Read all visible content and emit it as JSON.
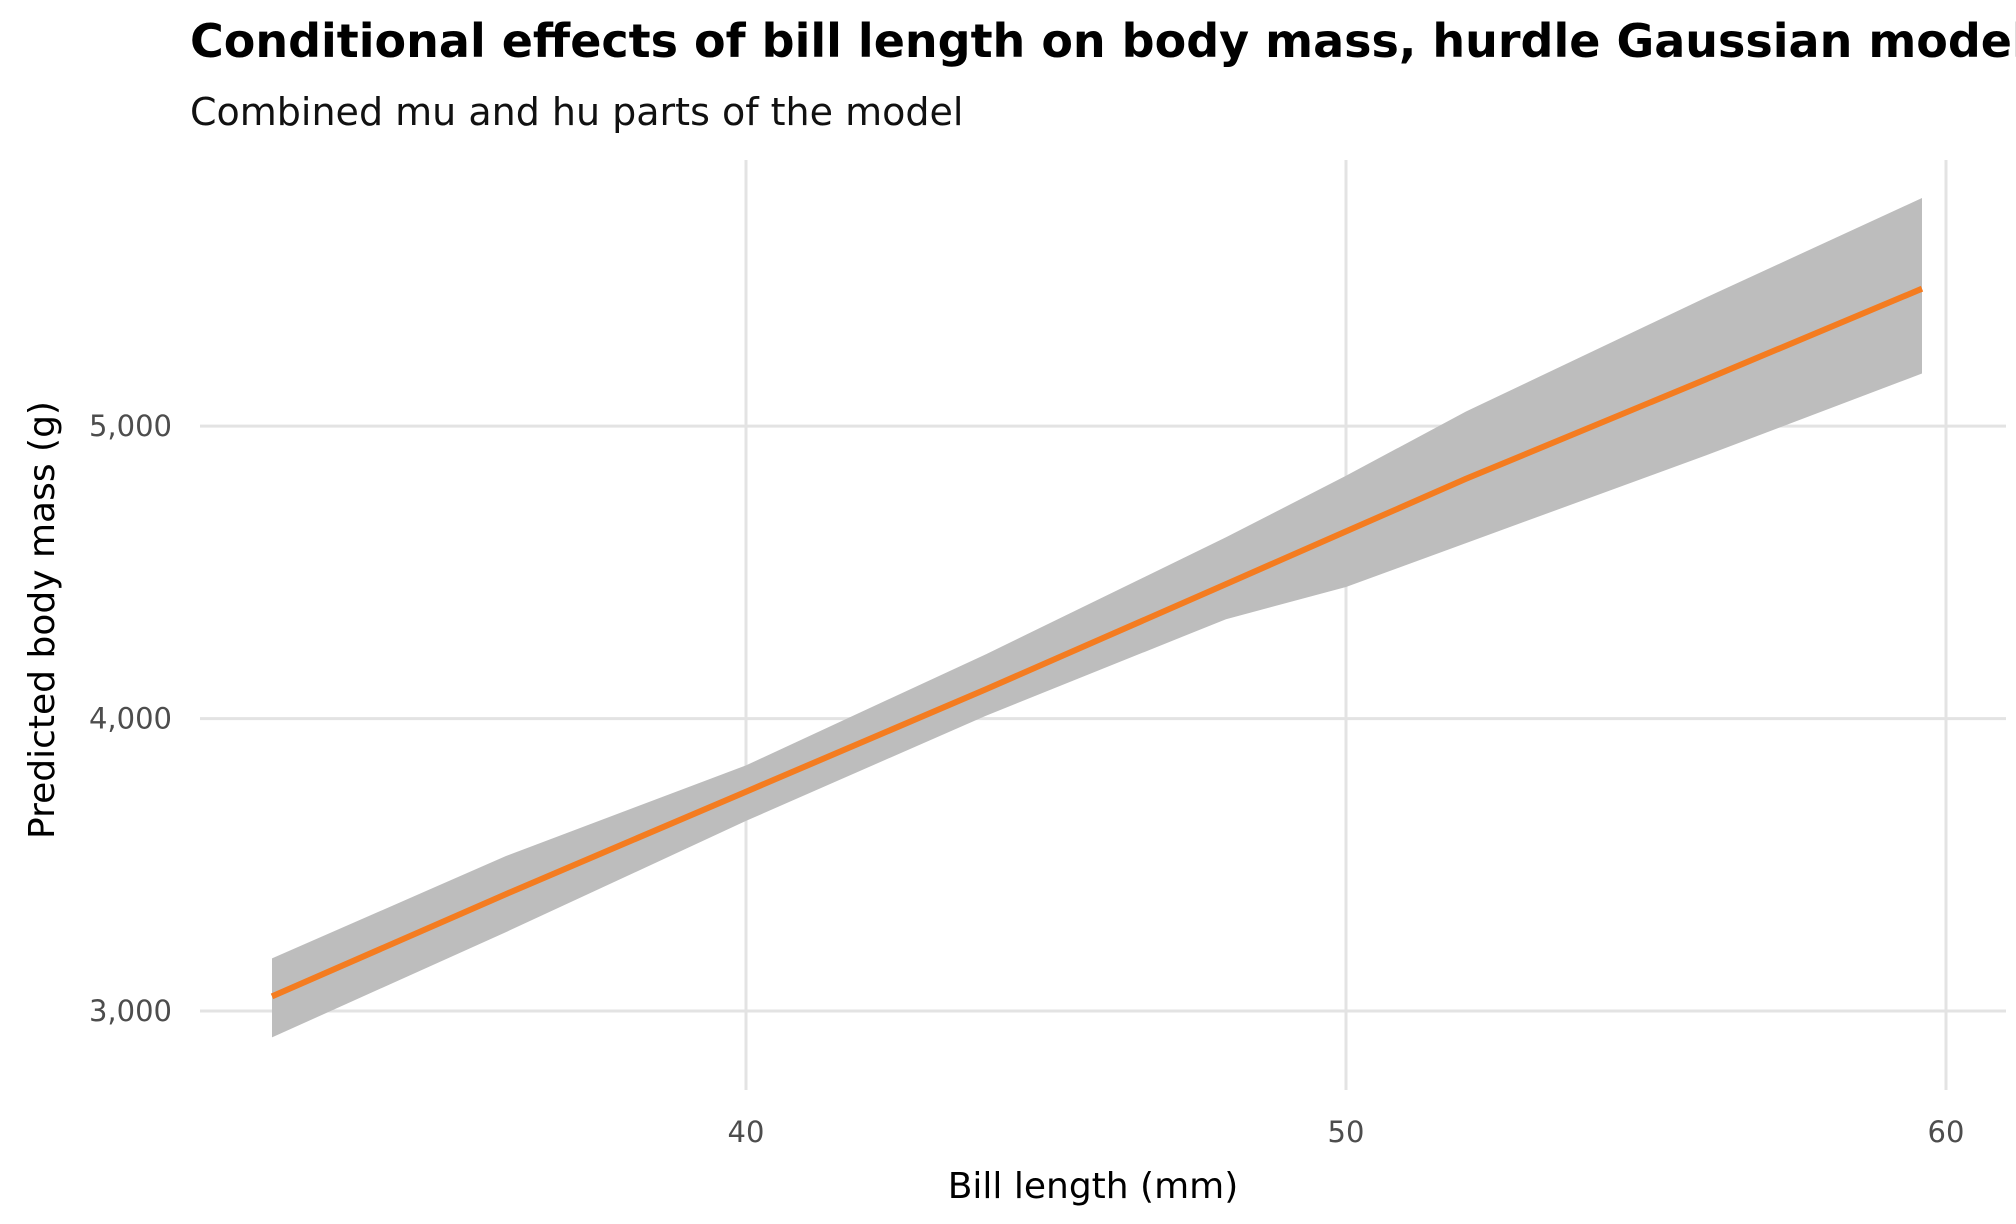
{
  "chart_data": {
    "type": "line",
    "title": "Conditional effects of bill length on body mass, hurdle Gaussian model",
    "subtitle": "Combined mu and hu parts of the model",
    "xlabel": "Bill length (mm)",
    "ylabel": "Predicted body mass (g)",
    "xlim": [
      30.9,
      61.0
    ],
    "ylim": [
      2730,
      5910
    ],
    "xticks": [
      40,
      50,
      60
    ],
    "xtick_labels": [
      "40",
      "50",
      "60"
    ],
    "yticks": [
      3000,
      4000,
      5000
    ],
    "ytick_labels": [
      "3,000",
      "4,000",
      "5,000"
    ],
    "grid": true,
    "legend": "none",
    "line_color": "#f47c20",
    "ribbon_color": "#bdbdbd",
    "series": [
      {
        "x": [
          32.1,
          36.0,
          40.0,
          44.0,
          48.0,
          50.0,
          52.0,
          56.0,
          59.6
        ],
        "y": [
          3050,
          3400,
          3750,
          4100,
          4460,
          4640,
          4820,
          5160,
          5470
        ],
        "lower": [
          2910,
          3270,
          3650,
          4010,
          4340,
          4450,
          4600,
          4900,
          5180
        ],
        "upper": [
          3180,
          3530,
          3840,
          4220,
          4620,
          4830,
          5050,
          5440,
          5780
        ]
      }
    ]
  }
}
